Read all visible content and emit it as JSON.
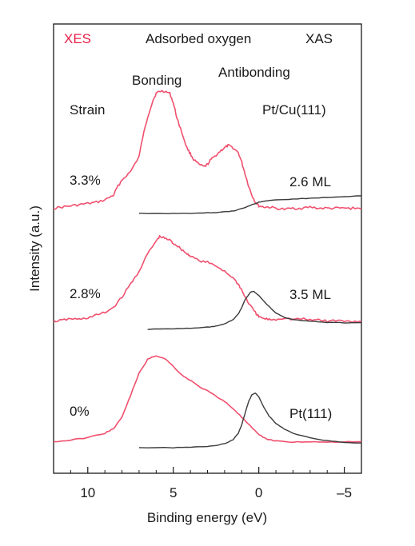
{
  "chart_data": {
    "type": "line",
    "header": {
      "xes": "XES",
      "title": "Adsorbed oxygen",
      "xas": "XAS"
    },
    "annotations": {
      "bonding": "Bonding",
      "antibonding": "Antibonding",
      "strain": "Strain",
      "system": "Pt/Cu(111)"
    },
    "xlabel": "Binding energy (eV)",
    "ylabel": "Intensity (a.u.)",
    "xlim": [
      12,
      -6
    ],
    "x_reversed": true,
    "x_ticks": [
      10,
      5,
      0,
      -5
    ],
    "x_tick_labels": [
      "10",
      "5",
      "0",
      "–5"
    ],
    "colors": {
      "xes": "#f0506e",
      "xas": "#3a3a3a",
      "axis": "#1a1a1a",
      "xes_label": "#e8204a"
    },
    "series": [
      {
        "strain_label": "3.3%",
        "coverage_label": "2.6 ML",
        "offset": 2,
        "xes": {
          "x": [
            12.0,
            11.5,
            11.0,
            10.5,
            10.0,
            9.5,
            9.0,
            8.5,
            8.3,
            8.0,
            7.5,
            7.0,
            6.8,
            6.5,
            6.2,
            6.0,
            5.8,
            5.5,
            5.2,
            5.0,
            4.8,
            4.5,
            4.2,
            4.0,
            3.8,
            3.5,
            3.2,
            3.0,
            2.8,
            2.5,
            2.2,
            2.0,
            1.8,
            1.5,
            1.2,
            1.0,
            0.8,
            0.6,
            0.4,
            0.2,
            0.0,
            -0.3,
            -0.6,
            -1.0,
            -1.5,
            -2.0,
            -2.5,
            -3.0,
            -3.5,
            -4.0,
            -4.5,
            -5.0,
            -5.5,
            -6.0
          ],
          "y": [
            0.01,
            0.02,
            0.03,
            0.04,
            0.05,
            0.06,
            0.08,
            0.12,
            0.18,
            0.25,
            0.32,
            0.45,
            0.6,
            0.78,
            0.92,
            0.98,
            1.0,
            1.0,
            0.98,
            0.9,
            0.78,
            0.65,
            0.52,
            0.47,
            0.42,
            0.38,
            0.36,
            0.38,
            0.42,
            0.46,
            0.5,
            0.52,
            0.54,
            0.52,
            0.48,
            0.4,
            0.3,
            0.2,
            0.12,
            0.06,
            0.03,
            0.02,
            0.02,
            0.01,
            0.0,
            0.01,
            0.01,
            0.02,
            0.01,
            0.01,
            0.01,
            0.01,
            0.01,
            0.01
          ]
        },
        "xas": {
          "x": [
            7.0,
            6.0,
            5.0,
            4.0,
            3.0,
            2.5,
            2.0,
            1.5,
            1.0,
            0.5,
            0.0,
            -0.5,
            -1.0,
            -2.0,
            -3.0,
            -4.0,
            -5.0,
            -6.0
          ],
          "y": [
            0.0,
            0.0,
            0.0,
            0.0,
            0.01,
            0.01,
            0.02,
            0.03,
            0.06,
            0.1,
            0.14,
            0.16,
            0.17,
            0.18,
            0.19,
            0.2,
            0.21,
            0.22
          ]
        }
      },
      {
        "strain_label": "2.8%",
        "coverage_label": "3.5 ML",
        "offset": 1,
        "xes": {
          "x": [
            12.0,
            11.5,
            11.0,
            10.5,
            10.0,
            9.5,
            9.0,
            8.5,
            8.0,
            7.5,
            7.0,
            6.5,
            6.0,
            5.8,
            5.5,
            5.2,
            5.0,
            4.8,
            4.5,
            4.2,
            4.0,
            3.5,
            3.0,
            2.5,
            2.0,
            1.5,
            1.2,
            1.0,
            0.8,
            0.5,
            0.2,
            0.0,
            -0.3,
            -0.6,
            -1.0,
            -1.5,
            -2.0,
            -2.5,
            -3.0,
            -3.5,
            -4.0,
            -4.5,
            -5.0,
            -5.5,
            -6.0
          ],
          "y": [
            0.02,
            0.03,
            0.05,
            0.04,
            0.06,
            0.09,
            0.12,
            0.18,
            0.3,
            0.45,
            0.6,
            0.8,
            0.95,
            1.0,
            0.98,
            0.96,
            0.92,
            0.9,
            0.85,
            0.8,
            0.78,
            0.72,
            0.7,
            0.66,
            0.6,
            0.52,
            0.45,
            0.38,
            0.3,
            0.2,
            0.12,
            0.07,
            0.05,
            0.04,
            0.04,
            0.06,
            0.04,
            0.05,
            0.03,
            0.04,
            0.02,
            0.03,
            0.02,
            0.02,
            0.02
          ]
        },
        "xas": {
          "x": [
            6.5,
            5.0,
            4.0,
            3.0,
            2.5,
            2.0,
            1.5,
            1.2,
            1.0,
            0.8,
            0.5,
            0.3,
            0.0,
            -0.5,
            -1.0,
            -1.5,
            -2.0,
            -3.0,
            -4.0,
            -5.0,
            -6.0
          ],
          "y": [
            0.0,
            0.01,
            0.02,
            0.04,
            0.06,
            0.1,
            0.18,
            0.28,
            0.4,
            0.55,
            0.68,
            0.7,
            0.62,
            0.45,
            0.3,
            0.22,
            0.18,
            0.15,
            0.13,
            0.12,
            0.12
          ]
        }
      },
      {
        "strain_label": "0%",
        "coverage_label": "Pt(111)",
        "offset": 0,
        "xes": {
          "x": [
            12.0,
            11.0,
            10.0,
            9.0,
            8.5,
            8.0,
            7.5,
            7.0,
            6.5,
            6.0,
            5.5,
            5.0,
            4.5,
            4.0,
            3.5,
            3.0,
            2.5,
            2.0,
            1.5,
            1.0,
            0.5,
            0.0,
            -0.5,
            -1.0,
            -2.0,
            -3.0,
            -4.0,
            -5.0,
            -6.0
          ],
          "y": [
            0.02,
            0.04,
            0.07,
            0.12,
            0.17,
            0.3,
            0.55,
            0.8,
            0.96,
            1.0,
            0.97,
            0.88,
            0.78,
            0.72,
            0.65,
            0.6,
            0.54,
            0.48,
            0.4,
            0.3,
            0.2,
            0.1,
            0.05,
            0.03,
            0.02,
            0.02,
            0.02,
            0.02,
            0.02
          ]
        },
        "xas": {
          "x": [
            7.0,
            5.0,
            4.0,
            3.0,
            2.5,
            2.0,
            1.5,
            1.2,
            1.0,
            0.8,
            0.6,
            0.4,
            0.2,
            0.0,
            -0.3,
            -0.6,
            -1.0,
            -1.5,
            -2.0,
            -3.0,
            -4.0,
            -5.0,
            -6.0
          ],
          "y": [
            0.0,
            0.0,
            0.01,
            0.02,
            0.04,
            0.07,
            0.14,
            0.25,
            0.4,
            0.6,
            0.8,
            0.92,
            0.95,
            0.88,
            0.7,
            0.55,
            0.42,
            0.32,
            0.25,
            0.17,
            0.12,
            0.09,
            0.08
          ]
        }
      }
    ]
  }
}
